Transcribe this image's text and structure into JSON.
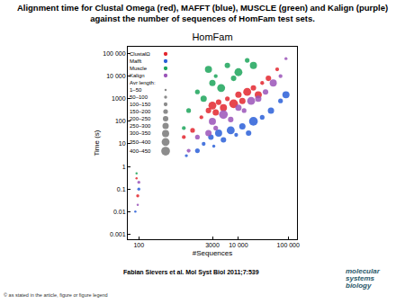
{
  "heading": "Alignment time for Clustal Omega (red), MAFFT (blue), MUSCLE (green) and Kalign (purple) against the number of sequences of HomFam test sets.",
  "citation": "Fabian Sievers et al. Mol Syst Biol 2011;7:539",
  "copyright": "© as stated in the article, figure or figure legend",
  "logo": "molecular systems biology",
  "chart_data": {
    "type": "scatter",
    "title": "HomFam",
    "x_label": "#Sequences",
    "y_label": "Time (s)",
    "log": true,
    "grid": false,
    "legend": "upper left",
    "marker": "circle",
    "xlim": [
      60,
      150000
    ],
    "xticks": [
      100,
      3000,
      {
        "value": 10000,
        "label": "10 000"
      },
      {
        "value": 100000,
        "label": "100 000"
      }
    ],
    "ylim": [
      0.0006,
      200000
    ],
    "yticks": [
      0.001,
      0.01,
      0.1,
      1,
      10,
      100,
      1000,
      {
        "value": 10000,
        "label": "10 000"
      },
      {
        "value": 100000,
        "label": "100 000"
      }
    ],
    "size_key": {
      "title": "Avr length:",
      "color": "#8c8c8c",
      "bins": [
        {
          "label": "1–50",
          "lo": 1,
          "hi": 50
        },
        {
          "label": "50–100",
          "lo": 50,
          "hi": 100
        },
        {
          "label": "100–150",
          "lo": 100,
          "hi": 150
        },
        {
          "label": "150–200",
          "lo": 150,
          "hi": 200
        },
        {
          "label": "200–250",
          "lo": 200,
          "hi": 250
        },
        {
          "label": "250–300",
          "lo": 250,
          "hi": 300
        },
        {
          "label": "300–350",
          "lo": 300,
          "hi": 350
        },
        {
          "label": "350–400",
          "lo": 350,
          "hi": 400
        },
        {
          "label": "400–450",
          "lo": 400,
          "hi": 450
        }
      ]
    },
    "series": [
      {
        "name": "ClustalΩ",
        "color": "#e3262e",
        "x": [
          90,
          95,
          800,
          1200,
          1800,
          2500,
          3000,
          3500,
          4000,
          5000,
          6000,
          8000,
          10000,
          12000,
          15000,
          20000,
          25000,
          30000,
          40000,
          60000
        ],
        "values": [
          0.3,
          0.05,
          20,
          40,
          150,
          300,
          500,
          250,
          700,
          400,
          1000,
          600,
          1500,
          800,
          2000,
          3000,
          1500,
          5000,
          8000,
          20000
        ],
        "avg_length": [
          40,
          80,
          150,
          200,
          120,
          250,
          380,
          300,
          220,
          350,
          180,
          420,
          300,
          260,
          400,
          220,
          330,
          150,
          240,
          120
        ]
      },
      {
        "name": "Mafft",
        "color": "#2a5fd8",
        "x": [
          85,
          100,
          900,
          1500,
          2000,
          2800,
          3200,
          4000,
          5000,
          7000,
          9000,
          12000,
          16000,
          20000,
          30000,
          45000,
          70000,
          90000
        ],
        "values": [
          0.01,
          0.1,
          3,
          5,
          10,
          20,
          8,
          30,
          15,
          40,
          25,
          60,
          30,
          100,
          150,
          300,
          800,
          1500
        ],
        "avg_length": [
          30,
          60,
          100,
          180,
          150,
          250,
          90,
          320,
          210,
          380,
          140,
          300,
          230,
          420,
          190,
          270,
          160,
          350
        ]
      },
      {
        "name": "Muscle",
        "color": "#1ca55a",
        "x": [
          90,
          800,
          1000,
          1500,
          2000,
          2500,
          3000,
          3500,
          4500,
          6000,
          8000,
          10000,
          15000,
          20000
        ],
        "values": [
          0.5,
          50,
          300,
          2000,
          1000,
          20000,
          5000,
          10000,
          3000,
          30000,
          8000,
          15000,
          50000,
          30000
        ],
        "avg_length": [
          50,
          120,
          200,
          180,
          260,
          350,
          300,
          150,
          400,
          250,
          220,
          380,
          170,
          320
        ]
      },
      {
        "name": "Kalign",
        "color": "#9a54b8",
        "x": [
          95,
          100,
          1000,
          1500,
          2500,
          3000,
          3500,
          5000,
          7000,
          10000,
          13000,
          18000,
          25000,
          35000,
          50000,
          70000,
          90000
        ],
        "values": [
          0.02,
          0.2,
          5,
          20,
          30,
          100,
          50,
          200,
          120,
          400,
          300,
          800,
          1000,
          2000,
          5000,
          10000,
          60000
        ],
        "avg_length": [
          20,
          70,
          130,
          160,
          280,
          330,
          200,
          410,
          240,
          300,
          190,
          360,
          260,
          230,
          310,
          150,
          100
        ]
      }
    ]
  }
}
